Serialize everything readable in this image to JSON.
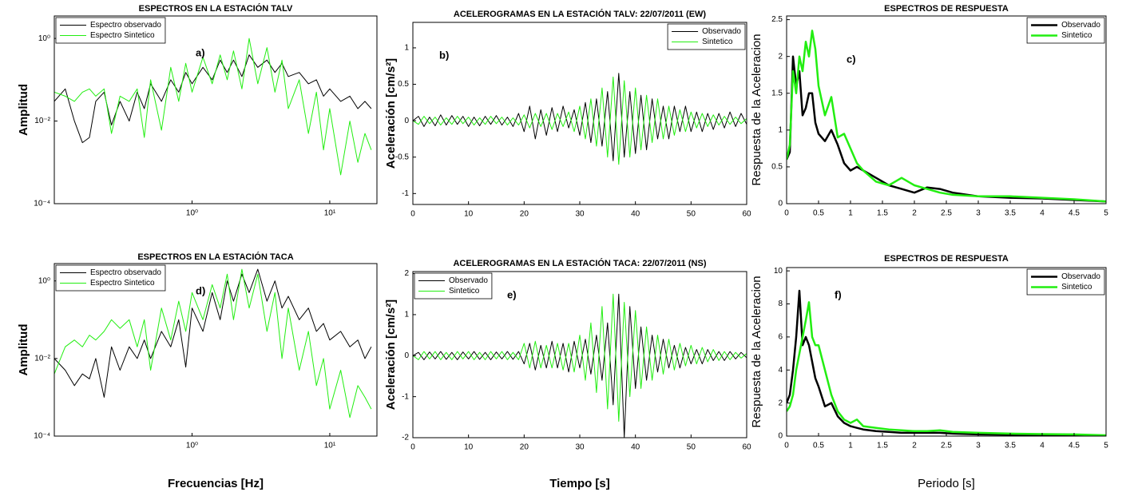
{
  "chart_data": [
    {
      "type": "line",
      "title": "ESPECTROS EN LA ESTACIÓN TALV",
      "panel_label": "a)",
      "ylabel": "Amplitud",
      "xscale": "log",
      "yscale": "log",
      "xlim": [
        0.1,
        22
      ],
      "ylim": [
        0.0001,
        3.5
      ],
      "xticks": [
        {
          "value": 1,
          "label": "10⁰"
        },
        {
          "value": 10,
          "label": "10¹"
        }
      ],
      "yticks": [
        {
          "value": 0.0001,
          "label": "10⁻⁴"
        },
        {
          "value": 0.01,
          "label": "10⁻²"
        },
        {
          "value": 1,
          "label": "10⁰"
        }
      ],
      "legend": "upper left",
      "x": [
        0.1,
        0.12,
        0.14,
        0.16,
        0.18,
        0.2,
        0.23,
        0.26,
        0.3,
        0.35,
        0.4,
        0.45,
        0.5,
        0.6,
        0.7,
        0.8,
        0.9,
        1,
        1.2,
        1.4,
        1.6,
        1.8,
        2,
        2.3,
        2.6,
        3,
        3.5,
        4,
        4.5,
        5,
        6,
        7,
        8,
        9,
        10,
        12,
        14,
        16,
        18,
        20
      ],
      "series": [
        {
          "name": "Espectro observado",
          "color": "#000000",
          "values": [
            0.03,
            0.06,
            0.01,
            0.003,
            0.004,
            0.03,
            0.05,
            0.008,
            0.03,
            0.01,
            0.05,
            0.02,
            0.08,
            0.03,
            0.1,
            0.05,
            0.15,
            0.08,
            0.2,
            0.1,
            0.3,
            0.15,
            0.3,
            0.12,
            0.4,
            0.2,
            0.3,
            0.15,
            0.25,
            0.12,
            0.15,
            0.08,
            0.1,
            0.04,
            0.06,
            0.03,
            0.04,
            0.02,
            0.03,
            0.02
          ]
        },
        {
          "name": "Espectro Sintetico",
          "color": "#22ee11",
          "values": [
            0.05,
            0.04,
            0.03,
            0.05,
            0.06,
            0.04,
            0.06,
            0.005,
            0.04,
            0.03,
            0.06,
            0.004,
            0.1,
            0.006,
            0.2,
            0.03,
            0.25,
            0.05,
            0.35,
            0.08,
            0.4,
            0.1,
            0.5,
            0.06,
            1.0,
            0.08,
            0.6,
            0.05,
            0.3,
            0.02,
            0.1,
            0.005,
            0.05,
            0.002,
            0.02,
            0.0005,
            0.01,
            0.001,
            0.005,
            0.002
          ]
        }
      ]
    },
    {
      "type": "line",
      "title": "ACELEROGRAMAS EN LA ESTACIÓN TALV: 22/07/2011 (EW)",
      "panel_label": "b)",
      "ylabel": "Aceleración [cm/s²]",
      "xlim": [
        0,
        60
      ],
      "ylim": [
        -1.15,
        1.35
      ],
      "xticks": [
        0,
        10,
        20,
        30,
        40,
        50,
        60
      ],
      "yticks": [
        -1,
        -0.5,
        0,
        0.5,
        1
      ],
      "legend": "upper right",
      "x": [
        0,
        1,
        2,
        3,
        4,
        5,
        6,
        7,
        8,
        9,
        10,
        11,
        12,
        13,
        14,
        15,
        16,
        17,
        18,
        19,
        20,
        21,
        22,
        23,
        24,
        25,
        26,
        27,
        28,
        29,
        30,
        31,
        32,
        33,
        34,
        35,
        36,
        37,
        38,
        39,
        40,
        41,
        42,
        43,
        44,
        45,
        46,
        47,
        48,
        49,
        50,
        51,
        52,
        53,
        54,
        55,
        56,
        57,
        58,
        59,
        60
      ],
      "series": [
        {
          "name": "Observado",
          "color": "#000000",
          "values": [
            0,
            0.06,
            -0.08,
            0.05,
            -0.07,
            0.08,
            -0.06,
            0.07,
            -0.05,
            0.06,
            -0.08,
            0.05,
            -0.07,
            0.06,
            -0.05,
            0.07,
            -0.06,
            0.05,
            -0.08,
            0.1,
            -0.15,
            0.2,
            -0.25,
            0.15,
            -0.2,
            0.18,
            -0.15,
            0.2,
            -0.1,
            0.15,
            -0.2,
            0.25,
            -0.3,
            0.3,
            -0.35,
            0.4,
            -0.55,
            0.65,
            -0.5,
            0.4,
            -0.45,
            0.35,
            -0.4,
            0.3,
            -0.25,
            0.2,
            -0.25,
            0.2,
            -0.15,
            0.2,
            -0.15,
            0.12,
            -0.15,
            0.1,
            -0.12,
            0.1,
            -0.1,
            0.12,
            -0.08,
            0.1,
            -0.05
          ]
        },
        {
          "name": "Sintetico",
          "color": "#22ee11",
          "values": [
            0,
            -0.05,
            0.06,
            -0.04,
            0.05,
            -0.06,
            0.04,
            -0.05,
            0.06,
            -0.04,
            0.05,
            -0.06,
            0.04,
            -0.05,
            0.06,
            -0.04,
            0.05,
            -0.06,
            0.04,
            -0.06,
            0.08,
            -0.1,
            0.1,
            -0.08,
            0.1,
            -0.12,
            0.1,
            -0.08,
            0.12,
            -0.15,
            0.2,
            -0.25,
            0.3,
            -0.35,
            0.45,
            -0.5,
            0.6,
            -0.6,
            0.55,
            -0.5,
            0.45,
            -0.4,
            0.35,
            -0.3,
            0.3,
            -0.25,
            0.2,
            -0.2,
            0.15,
            -0.15,
            0.12,
            -0.1,
            0.1,
            -0.08,
            0.08,
            -0.06,
            0.06,
            -0.05,
            0.05,
            -0.04,
            0.03
          ]
        }
      ]
    },
    {
      "type": "line",
      "title": "ESPECTROS DE RESPUESTA",
      "panel_label": "c)",
      "ylabel": "Respuesta de la Aceleracion",
      "xlim": [
        0,
        5
      ],
      "ylim": [
        0,
        2.55
      ],
      "xticks": [
        0,
        0.5,
        1,
        1.5,
        2,
        2.5,
        3,
        3.5,
        4,
        4.5,
        5
      ],
      "yticks": [
        0,
        0.5,
        1,
        1.5,
        2,
        2.5
      ],
      "legend": "upper right",
      "x": [
        0,
        0.05,
        0.1,
        0.15,
        0.2,
        0.25,
        0.3,
        0.35,
        0.4,
        0.45,
        0.5,
        0.6,
        0.7,
        0.8,
        0.9,
        1.0,
        1.1,
        1.2,
        1.4,
        1.6,
        1.8,
        2.0,
        2.2,
        2.4,
        2.6,
        3.0,
        3.5,
        4.0,
        4.5,
        5.0
      ],
      "series": [
        {
          "name": "Observado",
          "color": "#000000",
          "values": [
            0.6,
            0.7,
            2.0,
            1.6,
            1.8,
            1.2,
            1.3,
            1.5,
            1.5,
            1.1,
            0.95,
            0.85,
            1.0,
            0.8,
            0.55,
            0.45,
            0.5,
            0.45,
            0.35,
            0.25,
            0.2,
            0.15,
            0.22,
            0.2,
            0.15,
            0.1,
            0.08,
            0.07,
            0.05,
            0.03
          ]
        },
        {
          "name": "Sintetico",
          "color": "#22ee11",
          "values": [
            0.6,
            0.8,
            1.8,
            1.5,
            2.0,
            1.8,
            2.2,
            2.0,
            2.35,
            2.1,
            1.6,
            1.2,
            1.45,
            0.9,
            0.95,
            0.75,
            0.55,
            0.45,
            0.3,
            0.25,
            0.35,
            0.25,
            0.2,
            0.15,
            0.12,
            0.1,
            0.1,
            0.08,
            0.06,
            0.03
          ]
        }
      ]
    },
    {
      "type": "line",
      "title": "ESPECTROS EN LA ESTACIÓN TACA",
      "panel_label": "d)",
      "ylabel": "Amplitud",
      "xlabel": "Frecuencias [Hz]",
      "xscale": "log",
      "yscale": "log",
      "xlim": [
        0.1,
        22
      ],
      "ylim": [
        0.0001,
        2.8
      ],
      "xticks": [
        {
          "value": 1,
          "label": "10⁰"
        },
        {
          "value": 10,
          "label": "10¹"
        }
      ],
      "yticks": [
        {
          "value": 0.0001,
          "label": "10⁻⁴"
        },
        {
          "value": 0.01,
          "label": "10⁻²"
        },
        {
          "value": 1,
          "label": "10⁰"
        }
      ],
      "legend": "upper left",
      "x": [
        0.1,
        0.12,
        0.14,
        0.16,
        0.18,
        0.2,
        0.23,
        0.26,
        0.3,
        0.35,
        0.4,
        0.45,
        0.5,
        0.6,
        0.7,
        0.8,
        0.9,
        1,
        1.2,
        1.4,
        1.6,
        1.8,
        2,
        2.3,
        2.6,
        3,
        3.5,
        4,
        4.5,
        5,
        6,
        7,
        8,
        9,
        10,
        12,
        14,
        16,
        18,
        20
      ],
      "series": [
        {
          "name": "Espectro observado",
          "color": "#000000",
          "values": [
            0.01,
            0.005,
            0.002,
            0.004,
            0.003,
            0.01,
            0.001,
            0.02,
            0.005,
            0.02,
            0.01,
            0.03,
            0.01,
            0.05,
            0.02,
            0.1,
            0.006,
            0.2,
            0.05,
            0.5,
            0.1,
            1.0,
            0.3,
            1.5,
            0.5,
            2.0,
            0.3,
            1.0,
            0.2,
            0.4,
            0.1,
            0.2,
            0.05,
            0.08,
            0.03,
            0.05,
            0.02,
            0.03,
            0.01,
            0.02
          ]
        },
        {
          "name": "Espectro Sintetico",
          "color": "#22ee11",
          "values": [
            0.004,
            0.02,
            0.03,
            0.02,
            0.04,
            0.03,
            0.05,
            0.1,
            0.06,
            0.1,
            0.02,
            0.1,
            0.005,
            0.2,
            0.03,
            0.3,
            0.05,
            0.5,
            0.1,
            0.8,
            0.2,
            1.5,
            0.1,
            2.0,
            0.2,
            1.5,
            0.05,
            0.5,
            0.01,
            0.2,
            0.005,
            0.05,
            0.002,
            0.01,
            0.0005,
            0.005,
            0.0003,
            0.002,
            0.001,
            0.0005
          ]
        }
      ]
    },
    {
      "type": "line",
      "title": "ACELEROGRAMAS EN LA ESTACIÓN TACA: 22/07/2011 (NS)",
      "panel_label": "e)",
      "ylabel": "Aceleración [cm/s²]",
      "xlabel": "Tiempo [s]",
      "xlim": [
        0,
        60
      ],
      "ylim": [
        -2,
        2.05
      ],
      "xticks": [
        0,
        10,
        20,
        30,
        40,
        50,
        60
      ],
      "yticks": [
        -2,
        -1,
        0,
        1,
        2
      ],
      "legend": "upper left",
      "x": [
        0,
        1,
        2,
        3,
        4,
        5,
        6,
        7,
        8,
        9,
        10,
        11,
        12,
        13,
        14,
        15,
        16,
        17,
        18,
        19,
        20,
        21,
        22,
        23,
        24,
        25,
        26,
        27,
        28,
        29,
        30,
        31,
        32,
        33,
        34,
        35,
        36,
        37,
        38,
        39,
        40,
        41,
        42,
        43,
        44,
        45,
        46,
        47,
        48,
        49,
        50,
        51,
        52,
        53,
        54,
        55,
        56,
        57,
        58,
        59,
        60
      ],
      "series": [
        {
          "name": "Observado",
          "color": "#000000",
          "values": [
            0,
            0.08,
            -0.1,
            0.09,
            -0.08,
            0.1,
            -0.09,
            0.08,
            -0.1,
            0.09,
            -0.08,
            0.1,
            -0.09,
            0.08,
            -0.1,
            0.09,
            -0.08,
            0.1,
            -0.09,
            0.1,
            -0.2,
            0.3,
            -0.35,
            0.25,
            -0.3,
            0.35,
            -0.3,
            0.3,
            -0.4,
            0.35,
            -0.3,
            0.4,
            -0.45,
            0.5,
            -0.6,
            0.8,
            -1.2,
            1.5,
            -2.0,
            1.2,
            -0.8,
            0.7,
            -0.6,
            0.5,
            -0.4,
            0.4,
            -0.3,
            0.25,
            -0.3,
            0.2,
            -0.2,
            0.15,
            -0.2,
            0.15,
            -0.12,
            0.1,
            -0.12,
            0.1,
            -0.08,
            0.08,
            -0.05
          ]
        },
        {
          "name": "Sintetico",
          "color": "#22ee11",
          "values": [
            0,
            -0.1,
            0.1,
            -0.08,
            0.1,
            -0.1,
            0.08,
            -0.1,
            0.1,
            -0.08,
            0.1,
            -0.1,
            0.08,
            -0.1,
            0.1,
            -0.08,
            0.1,
            -0.1,
            0.08,
            -0.1,
            0.3,
            -0.3,
            0.35,
            -0.3,
            0.25,
            -0.3,
            0.3,
            -0.35,
            0.3,
            -0.4,
            0.5,
            -0.6,
            0.8,
            -0.9,
            1.2,
            -1.3,
            1.5,
            -1.6,
            1.3,
            -1.0,
            1.1,
            -0.8,
            0.7,
            -0.6,
            0.5,
            -0.45,
            0.4,
            -0.35,
            0.3,
            -0.25,
            0.25,
            -0.2,
            0.2,
            -0.15,
            0.15,
            -0.12,
            0.1,
            -0.1,
            0.08,
            -0.06,
            0.05
          ]
        }
      ]
    },
    {
      "type": "line",
      "title": "ESPECTROS DE RESPUESTA",
      "panel_label": "f)",
      "ylabel": "Respuesta de la Aceleracion",
      "xlabel": "Periodo [s]",
      "xlim": [
        0,
        5
      ],
      "ylim": [
        0,
        10.2
      ],
      "xticks": [
        0,
        0.5,
        1,
        1.5,
        2,
        2.5,
        3,
        3.5,
        4,
        4.5,
        5
      ],
      "yticks": [
        0,
        2,
        4,
        6,
        8,
        10
      ],
      "legend": "upper right",
      "x": [
        0,
        0.05,
        0.1,
        0.15,
        0.2,
        0.25,
        0.3,
        0.35,
        0.4,
        0.45,
        0.5,
        0.6,
        0.7,
        0.8,
        0.9,
        1.0,
        1.1,
        1.2,
        1.4,
        1.6,
        1.8,
        2.0,
        2.2,
        2.4,
        2.6,
        3.0,
        3.5,
        4.0,
        4.5,
        5.0
      ],
      "series": [
        {
          "name": "Observado",
          "color": "#000000",
          "values": [
            2.0,
            2.5,
            4.0,
            6.0,
            8.8,
            5.5,
            6.0,
            5.5,
            4.5,
            3.5,
            3.0,
            1.8,
            2.0,
            1.2,
            0.8,
            0.6,
            0.5,
            0.4,
            0.3,
            0.25,
            0.2,
            0.2,
            0.2,
            0.2,
            0.15,
            0.1,
            0.08,
            0.06,
            0.05,
            0.03
          ]
        },
        {
          "name": "Sintetico",
          "color": "#22ee11",
          "values": [
            1.5,
            1.8,
            2.5,
            4.0,
            5.0,
            6.0,
            7.0,
            8.1,
            6.0,
            5.5,
            5.5,
            4.0,
            2.5,
            1.5,
            1.0,
            0.8,
            1.0,
            0.6,
            0.5,
            0.4,
            0.35,
            0.3,
            0.3,
            0.35,
            0.25,
            0.2,
            0.15,
            0.12,
            0.1,
            0.05
          ]
        }
      ]
    }
  ]
}
